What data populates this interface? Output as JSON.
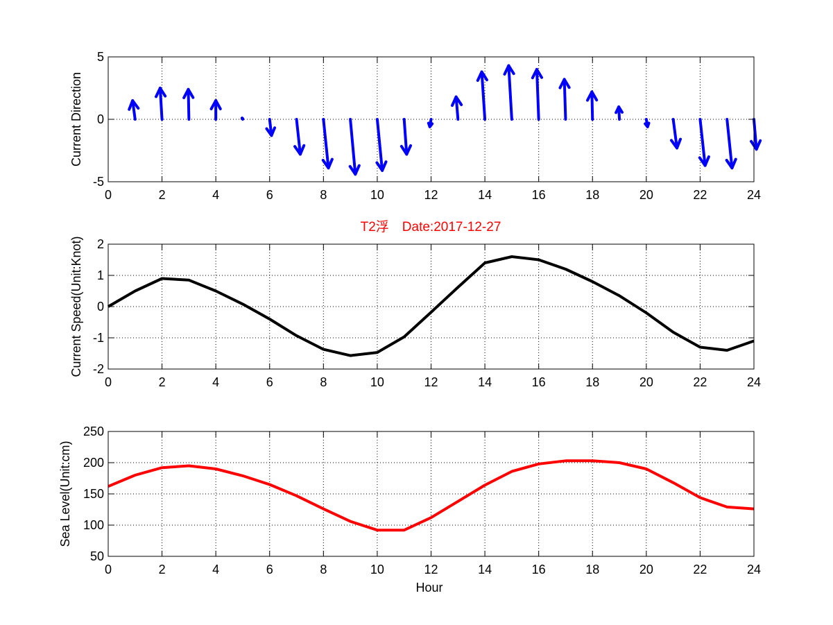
{
  "colors": {
    "arrows": "#0000FF",
    "speed_line": "#000000",
    "sea_level_line": "#FF0000",
    "title": "#FF0000",
    "axes": "#000000",
    "grid": "#000000"
  },
  "chart_data": [
    {
      "type": "quiver",
      "title": "",
      "xlabel": "",
      "ylabel": "Current Direction",
      "xlim": [
        0,
        24
      ],
      "ylim": [
        -5,
        5
      ],
      "xticks": [
        "0",
        "2",
        "4",
        "6",
        "8",
        "10",
        "12",
        "14",
        "16",
        "18",
        "20",
        "22",
        "24"
      ],
      "yticks": [
        "-5",
        "0",
        "5"
      ],
      "grid": true,
      "x": [
        1,
        2,
        3,
        4,
        5,
        6,
        7,
        8,
        9,
        10,
        11,
        12,
        13,
        14,
        15,
        16,
        17,
        18,
        19,
        20,
        21,
        22,
        23,
        24
      ],
      "u": [
        -0.2,
        -0.15,
        -0.05,
        0.0,
        -0.05,
        0.15,
        0.3,
        0.4,
        0.4,
        0.4,
        0.2,
        -0.1,
        -0.15,
        -0.25,
        -0.25,
        -0.15,
        -0.1,
        -0.05,
        -0.05,
        0.1,
        0.3,
        0.4,
        0.4,
        0.2
      ],
      "v": [
        1.5,
        2.5,
        2.4,
        1.5,
        0.1,
        -1.3,
        -2.8,
        -3.9,
        -4.4,
        -4.1,
        -2.8,
        -0.6,
        1.8,
        3.8,
        4.3,
        4.0,
        3.2,
        2.2,
        1.0,
        -0.6,
        -2.3,
        -3.7,
        -3.9,
        -2.4
      ],
      "color": "blue"
    },
    {
      "type": "line",
      "title": "T2浮　Date:2017-12-27",
      "xlabel": "",
      "ylabel": "Current Speed(Unit:Knot)",
      "xlim": [
        0,
        24
      ],
      "ylim": [
        -2,
        2
      ],
      "xticks": [
        "0",
        "2",
        "4",
        "6",
        "8",
        "10",
        "12",
        "14",
        "16",
        "18",
        "20",
        "22",
        "24"
      ],
      "yticks": [
        "-2",
        "-1",
        "0",
        "1",
        "2"
      ],
      "grid": true,
      "x": [
        0,
        1,
        2,
        3,
        4,
        5,
        6,
        7,
        8,
        9,
        10,
        11,
        12,
        13,
        14,
        15,
        16,
        17,
        18,
        19,
        20,
        21,
        22,
        23,
        24
      ],
      "y": [
        0.0,
        0.5,
        0.9,
        0.85,
        0.5,
        0.08,
        -0.4,
        -0.93,
        -1.37,
        -1.57,
        -1.47,
        -0.97,
        -0.18,
        0.62,
        1.4,
        1.6,
        1.5,
        1.2,
        0.8,
        0.35,
        -0.2,
        -0.82,
        -1.3,
        -1.4,
        -1.1
      ],
      "color": "black"
    },
    {
      "type": "line",
      "title": "",
      "xlabel": "Hour",
      "ylabel": "Sea Level(Unit:cm)",
      "xlim": [
        0,
        24
      ],
      "ylim": [
        50,
        250
      ],
      "xticks": [
        "0",
        "2",
        "4",
        "6",
        "8",
        "10",
        "12",
        "14",
        "16",
        "18",
        "20",
        "22",
        "24"
      ],
      "yticks": [
        "50",
        "100",
        "150",
        "200",
        "250"
      ],
      "grid": true,
      "x": [
        0,
        1,
        2,
        3,
        4,
        5,
        6,
        7,
        8,
        9,
        10,
        11,
        12,
        13,
        14,
        15,
        16,
        17,
        18,
        19,
        20,
        21,
        22,
        23,
        24
      ],
      "y": [
        162,
        180,
        192,
        195,
        190,
        179,
        165,
        147,
        126,
        106,
        92,
        92,
        112,
        138,
        164,
        186,
        198,
        203,
        203,
        200,
        190,
        168,
        144,
        129,
        126
      ],
      "color": "red"
    }
  ]
}
